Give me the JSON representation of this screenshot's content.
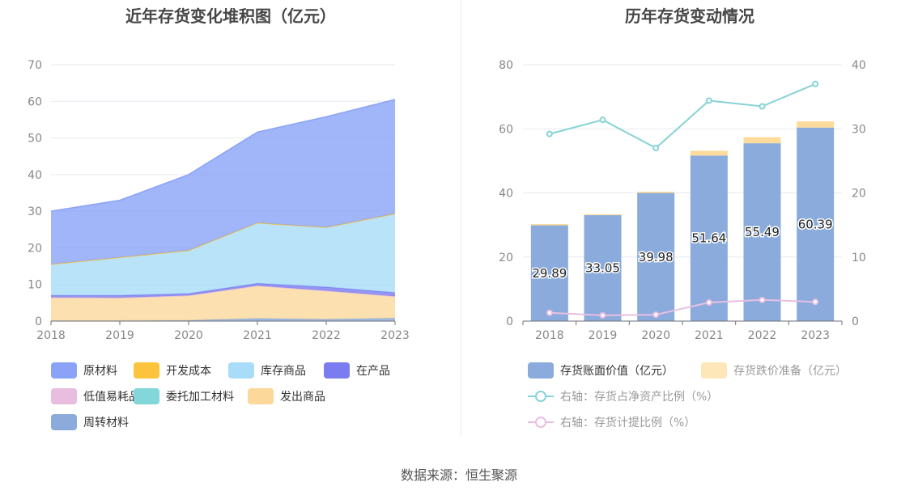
{
  "left_title": "近年存货变化堆积图（亿元）",
  "right_title": "历年存货变动情况",
  "source": "数据来源：恒生聚源",
  "left_legend": [
    {
      "label": "原材料",
      "color": "#8aa3f8"
    },
    {
      "label": "开发成本",
      "color": "#fcc43c"
    },
    {
      "label": "库存商品",
      "color": "#a8dcf8"
    },
    {
      "label": "在产品",
      "color": "#7b7cf0"
    },
    {
      "label": "低值易耗品",
      "color": "#e7bde0"
    },
    {
      "label": "委托加工材料",
      "color": "#83d6d9"
    },
    {
      "label": "发出商品",
      "color": "#fdd89b"
    },
    {
      "label": "周转材料",
      "color": "#8aabdc"
    }
  ],
  "right_legend": [
    {
      "label": "存货账面价值（亿元）",
      "color": "#8aabdc",
      "kind": "bar",
      "muted": false
    },
    {
      "label": "存货跌价准备（亿元）",
      "color": "#fde6b8",
      "kind": "bar",
      "muted": true
    },
    {
      "label": "右轴：存货占净资产比例（%）",
      "color": "#86d3d6",
      "kind": "line",
      "muted": true
    },
    {
      "label": "右轴：存货计提比例（%）",
      "color": "#e8bfe2",
      "kind": "line",
      "muted": true
    }
  ],
  "chart_data": [
    {
      "type": "area",
      "title": "近年存货变化堆积图（亿元）",
      "x": [
        "2018",
        "2019",
        "2020",
        "2021",
        "2022",
        "2023"
      ],
      "ylim": [
        0,
        70
      ],
      "yticks": [
        0,
        10,
        20,
        30,
        40,
        50,
        60,
        70
      ],
      "stacked": true,
      "series": [
        {
          "name": "周转材料",
          "color": "#8aabdc",
          "values": [
            0.1,
            0.1,
            0.2,
            0.7,
            0.5,
            0.8
          ]
        },
        {
          "name": "发出商品",
          "color": "#fdd89b",
          "values": [
            6.4,
            6.3,
            6.8,
            9.0,
            7.8,
            6.0
          ]
        },
        {
          "name": "委托加工材料",
          "color": "#83d6d9",
          "values": [
            0,
            0,
            0,
            0,
            0,
            0
          ]
        },
        {
          "name": "低值易耗品",
          "color": "#e7bde0",
          "values": [
            0,
            0,
            0,
            0,
            0,
            0
          ]
        },
        {
          "name": "在产品",
          "color": "#7b7cf0",
          "values": [
            0.5,
            0.6,
            0.5,
            0.6,
            1.0,
            1.0
          ]
        },
        {
          "name": "库存商品",
          "color": "#a8dcf8",
          "values": [
            8.5,
            10.4,
            11.8,
            16.5,
            16.3,
            21.5
          ]
        },
        {
          "name": "开发成本",
          "color": "#fcc43c",
          "values": [
            0,
            0,
            0,
            0,
            0,
            0
          ]
        },
        {
          "name": "原材料",
          "color": "#8aa3f8",
          "values": [
            14.5,
            15.6,
            20.7,
            24.8,
            30.2,
            31.2
          ]
        }
      ]
    },
    {
      "type": "bar",
      "title": "历年存货变动情况",
      "categories": [
        "2018",
        "2019",
        "2020",
        "2021",
        "2022",
        "2023"
      ],
      "ylim": [
        0,
        80
      ],
      "yticks": [
        0,
        20,
        40,
        60,
        80
      ],
      "y2lim": [
        0,
        40
      ],
      "y2ticks": [
        0,
        10,
        20,
        30,
        40
      ],
      "bars": [
        {
          "name": "存货账面价值（亿元）",
          "color": "#8aabdc",
          "values": [
            29.89,
            33.05,
            39.98,
            51.64,
            55.49,
            60.39
          ],
          "labels": [
            "29.89",
            "33.05",
            "39.98",
            "51.64",
            "55.49",
            "60.39"
          ]
        },
        {
          "name": "存货跌价准备（亿元）",
          "color": "#fddb9a",
          "values": [
            0.4,
            0.3,
            0.4,
            1.5,
            1.9,
            1.9
          ]
        }
      ],
      "lines": [
        {
          "name": "右轴：存货占净资产比例（%）",
          "color": "#86d3d6",
          "axis": "right",
          "values": [
            29.2,
            31.4,
            27.0,
            34.4,
            33.5,
            37.0
          ]
        },
        {
          "name": "右轴：存货计提比例（%）",
          "color": "#e8bfe2",
          "axis": "right",
          "values": [
            1.3,
            0.9,
            1.0,
            2.9,
            3.3,
            3.0
          ]
        }
      ]
    }
  ]
}
